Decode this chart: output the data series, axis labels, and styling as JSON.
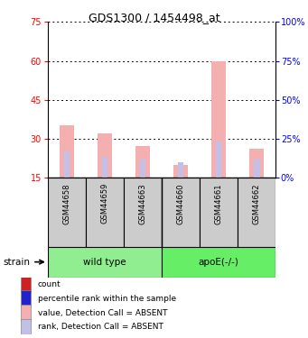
{
  "title": "GDS1300 / 1454498_at",
  "samples": [
    "GSM44658",
    "GSM44659",
    "GSM44663",
    "GSM44660",
    "GSM44661",
    "GSM44662"
  ],
  "group_labels": [
    "wild type",
    "apoE(-/-)"
  ],
  "bar_absent_value": [
    35,
    32,
    27,
    20,
    60,
    26
  ],
  "bar_absent_rank": [
    25,
    23,
    22,
    21,
    29,
    22
  ],
  "ylim_left": [
    15,
    75
  ],
  "ylim_right": [
    0,
    100
  ],
  "yticks_left": [
    15,
    30,
    45,
    60,
    75
  ],
  "yticks_right": [
    0,
    25,
    50,
    75,
    100
  ],
  "ytick_labels_right": [
    "0%",
    "25%",
    "50%",
    "75%",
    "100%"
  ],
  "color_absent_value": "#f4b0b0",
  "color_absent_rank": "#c0c0e8",
  "color_count": "#cc2222",
  "color_rank": "#2222cc",
  "sample_box_color": "#cccccc",
  "group_color_wt": "#90ee90",
  "group_color_ap": "#66ee66",
  "legend_items": [
    "count",
    "percentile rank within the sample",
    "value, Detection Call = ABSENT",
    "rank, Detection Call = ABSENT"
  ],
  "legend_colors": [
    "#cc2222",
    "#2222cc",
    "#f4b0b0",
    "#c0c0e8"
  ],
  "strain_label": "strain"
}
